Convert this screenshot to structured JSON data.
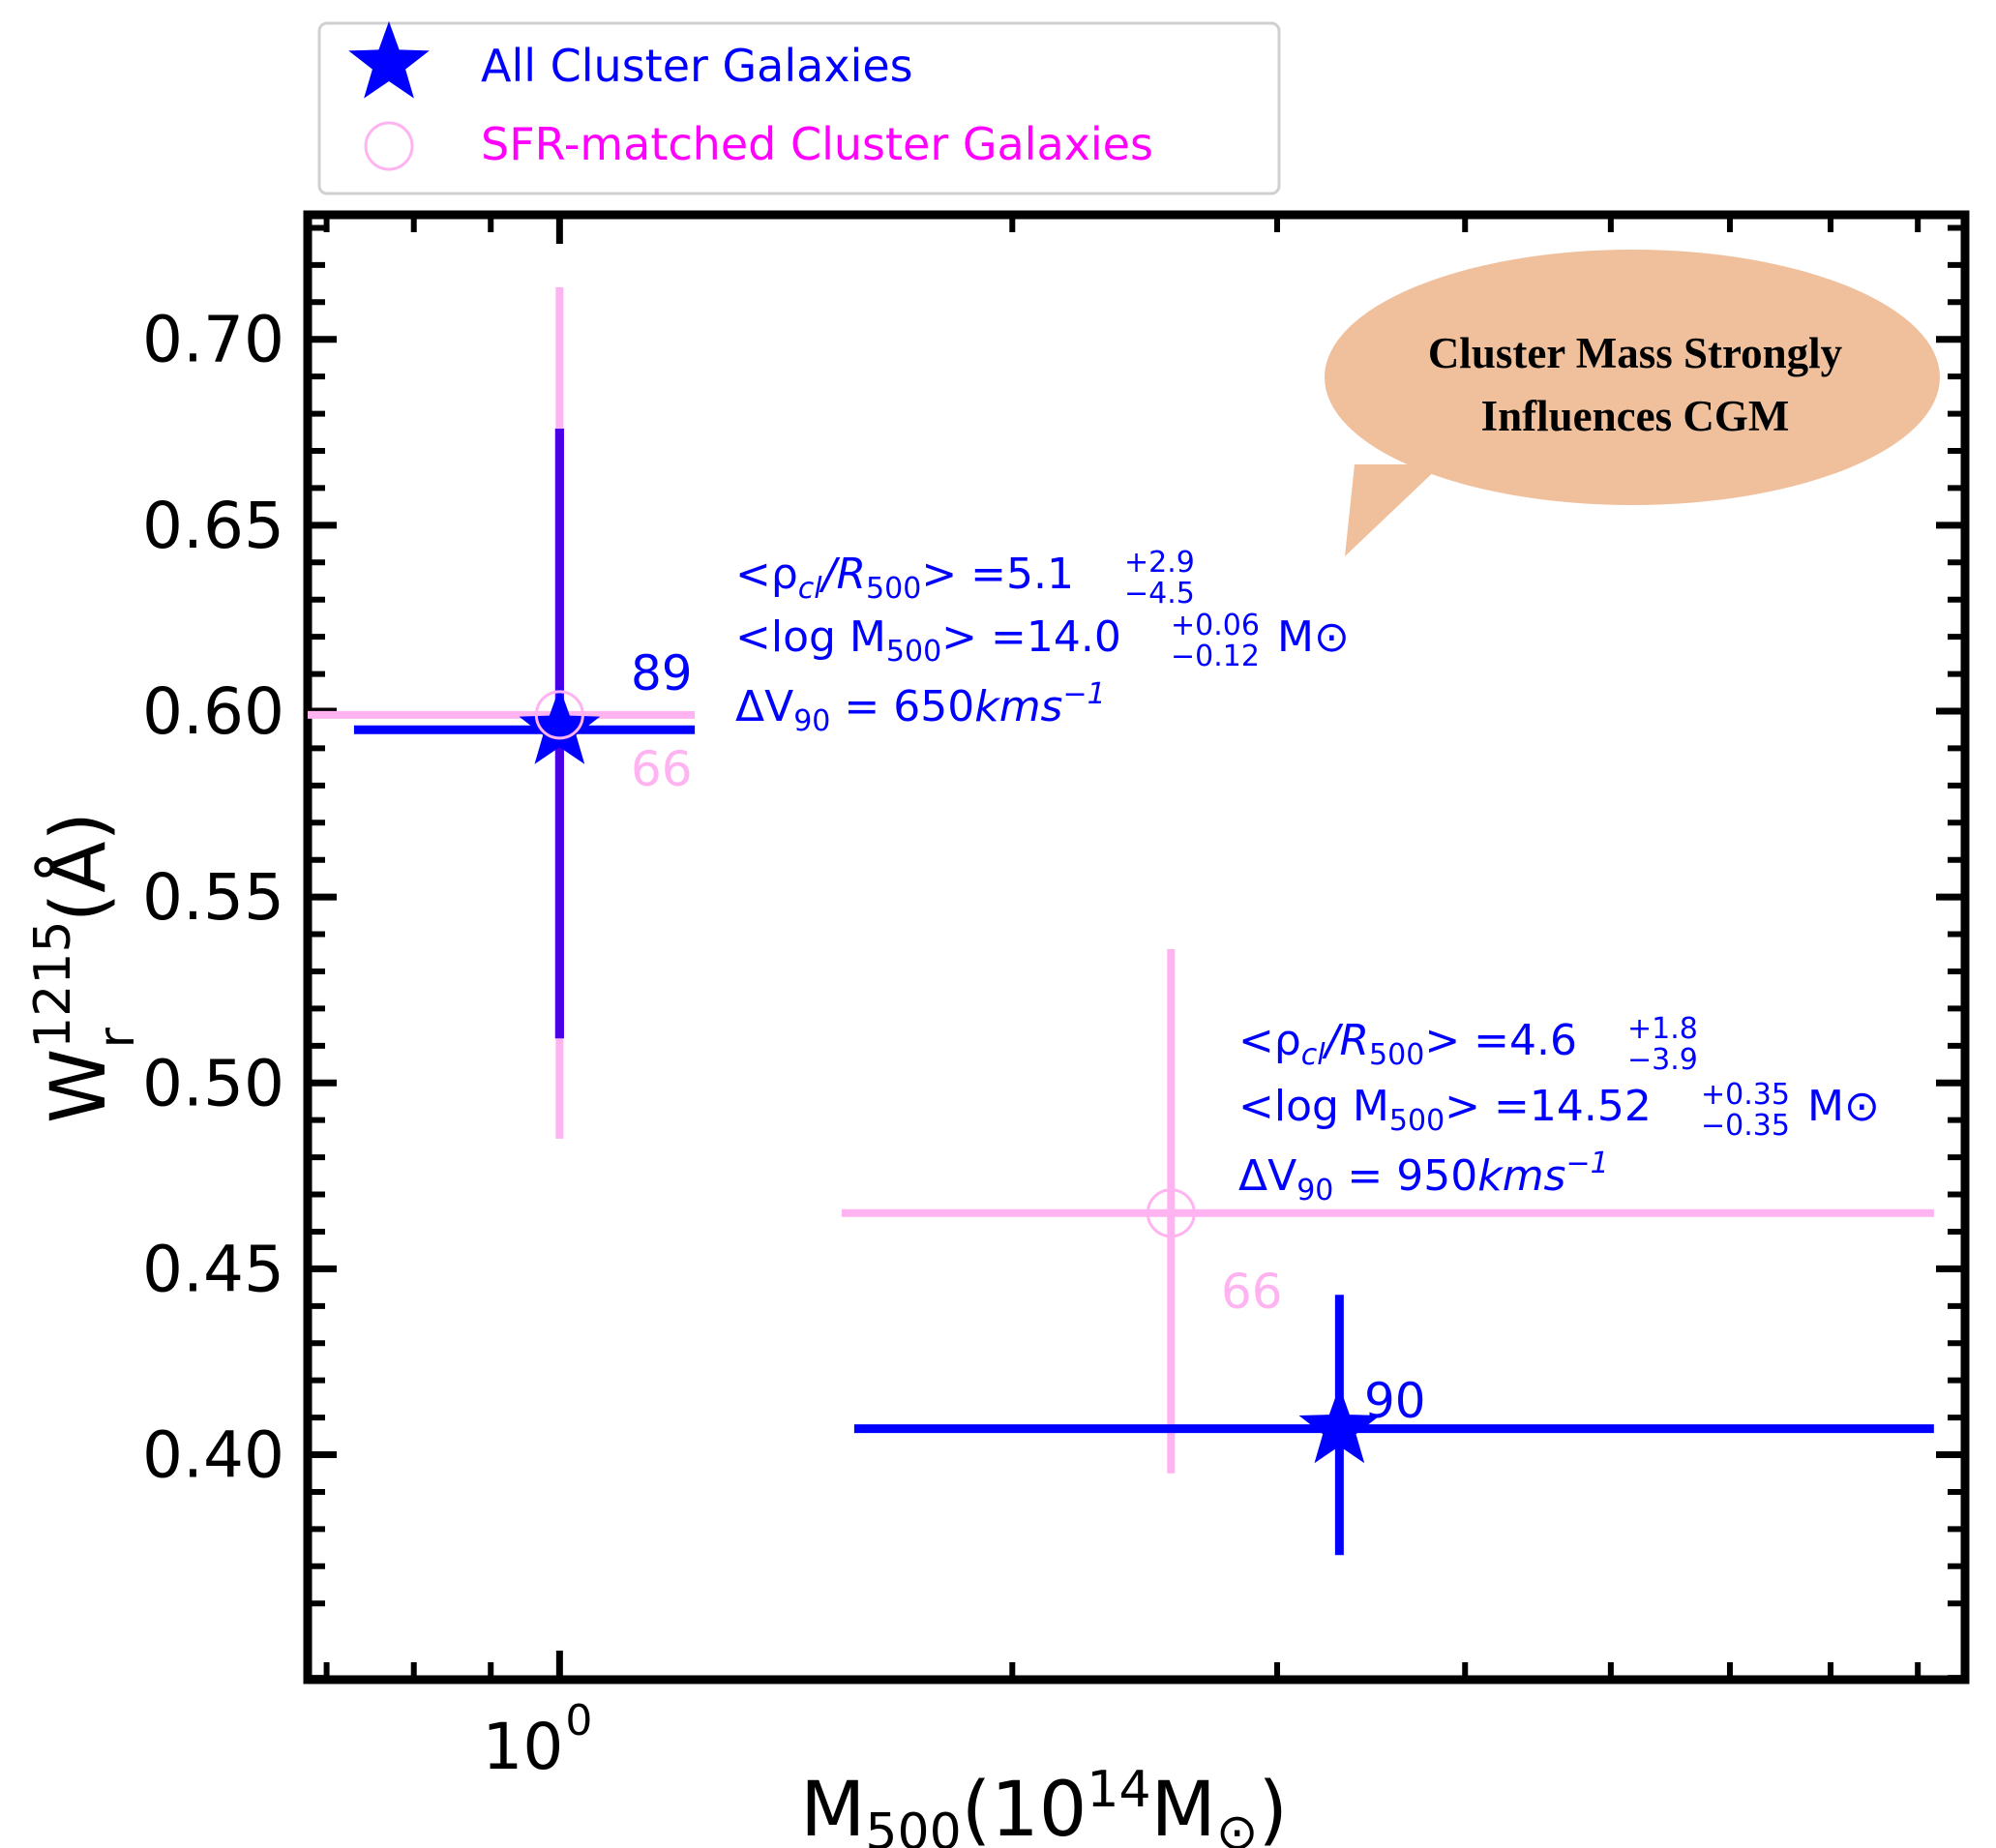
{
  "chart_data": {
    "type": "scatter",
    "title": "",
    "xlabel": {
      "main": "M",
      "sub": "500",
      "open": "(10",
      "sup": "14",
      "unit": "M",
      "unit_sub": "⊙",
      "close": ")"
    },
    "ylabel": {
      "main": "W",
      "sup": "1215",
      "sub": "r",
      "unit": " (Å)"
    },
    "x_scale": "log",
    "xlim": [
      0.68,
      8.6
    ],
    "ylim": [
      0.3395,
      0.7335
    ],
    "x_tick_labels": [
      {
        "value": 1.0,
        "base": "10",
        "exp": "0"
      }
    ],
    "y_ticks": [
      0.4,
      0.45,
      0.5,
      0.55,
      0.6,
      0.65,
      0.7
    ],
    "y_tick_labels": [
      "0.40",
      "0.45",
      "0.50",
      "0.55",
      "0.60",
      "0.65",
      "0.70"
    ],
    "colors": {
      "all": "#0000ff",
      "sfr": "#ffb3f0",
      "sfr_legend_text": "#ff00ff",
      "bubble": "#f0c09c",
      "frame": "#000000"
    },
    "legend": {
      "placement": "top-left, outside",
      "entries": [
        {
          "label": "All Cluster Galaxies",
          "marker": "star",
          "color": "#0000ff"
        },
        {
          "label": "SFR-matched Cluster Galaxies",
          "marker": "open-circle",
          "color": "#ffb3f0",
          "text_color": "#ff00ff"
        }
      ]
    },
    "series": [
      {
        "name": "All Cluster Galaxies",
        "marker": "star",
        "points": [
          {
            "x": 1.0,
            "y": 0.595,
            "xerr": [
              0.73,
              1.23
            ],
            "yerr": [
              0.512,
              0.676
            ],
            "count": "89"
          },
          {
            "x": 3.3,
            "y": 0.407,
            "xerr": [
              1.57,
              8.2
            ],
            "yerr": [
              0.373,
              0.443
            ],
            "count": "90"
          }
        ]
      },
      {
        "name": "SFR-matched Cluster Galaxies",
        "marker": "open-circle",
        "points": [
          {
            "x": 1.0,
            "y": 0.599,
            "xerr": [
              0.68,
              1.23
            ],
            "yerr": [
              0.485,
              0.714
            ],
            "count": "66"
          },
          {
            "x": 2.55,
            "y": 0.465,
            "xerr": [
              1.54,
              8.2
            ],
            "yerr": [
              0.395,
              0.536
            ],
            "count": "66"
          }
        ]
      }
    ],
    "annotations": [
      {
        "rho_prefix": "<ρ",
        "rho_sub": "cl",
        "rho_mid": "/R",
        "rho_sub2": "500",
        "rho_eq": "> =5.1",
        "rho_up": "+2.9",
        "rho_lo": "−4.5",
        "mass_prefix": "<log M",
        "mass_sub": "500",
        "mass_eq": "> =14.0",
        "mass_up": "+0.06",
        "mass_lo": "−0.12",
        "mass_unit": "M⊙",
        "dv_prefix": "ΔV",
        "dv_sub": "90",
        "dv_eq": " = 650",
        "dv_unit": "kms",
        "dv_exp": "−1"
      },
      {
        "rho_prefix": "<ρ",
        "rho_sub": "cl",
        "rho_mid": "/R",
        "rho_sub2": "500",
        "rho_eq": "> =4.6",
        "rho_up": "+1.8",
        "rho_lo": "−3.9",
        "mass_prefix": "<log M",
        "mass_sub": "500",
        "mass_eq": "> =14.52",
        "mass_up": "+0.35",
        "mass_lo": "−0.35",
        "mass_unit": "M⊙",
        "dv_prefix": "ΔV",
        "dv_sub": "90",
        "dv_eq": " = 950",
        "dv_unit": "kms",
        "dv_exp": "−1"
      }
    ],
    "callout": {
      "line1": "Cluster Mass Strongly",
      "line2": "Influences CGM"
    }
  }
}
